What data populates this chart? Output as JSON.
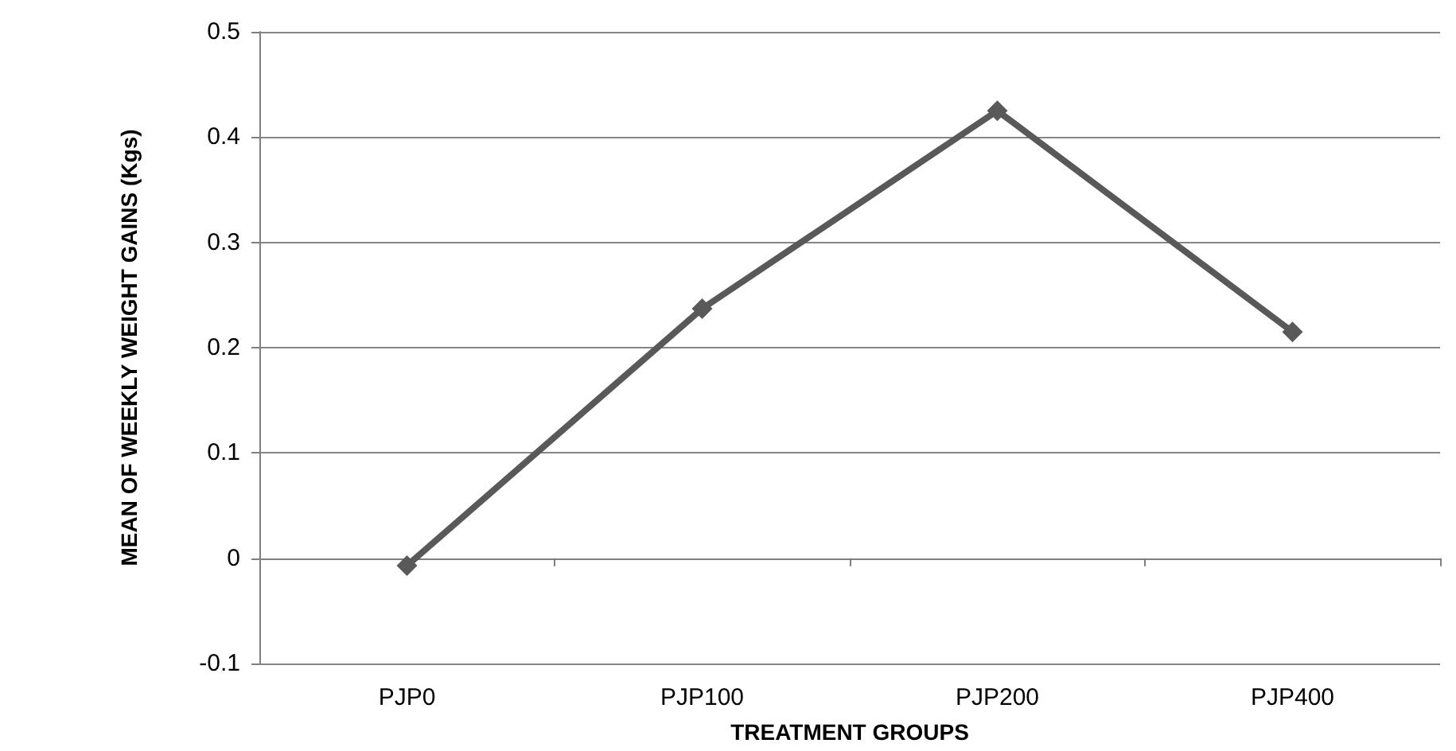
{
  "chart_data": {
    "type": "line",
    "xlabel": "TREATMENT GROUPS",
    "ylabel": "MEAN OF WEEKLY WEIGHT GAINS (Kgs)",
    "categories": [
      "PJP0",
      "PJP100",
      "PJP200",
      "PJP400"
    ],
    "series": [
      {
        "color": "#595959",
        "values": [
          -0.007,
          0.237,
          0.425,
          0.215
        ]
      }
    ],
    "ylim": [
      -0.1,
      0.5
    ],
    "yticks": [
      -0.1,
      0,
      0.1,
      0.2,
      0.3,
      0.4,
      0.5
    ],
    "grid": "y",
    "marker": "diamond",
    "line_style": "solid"
  }
}
